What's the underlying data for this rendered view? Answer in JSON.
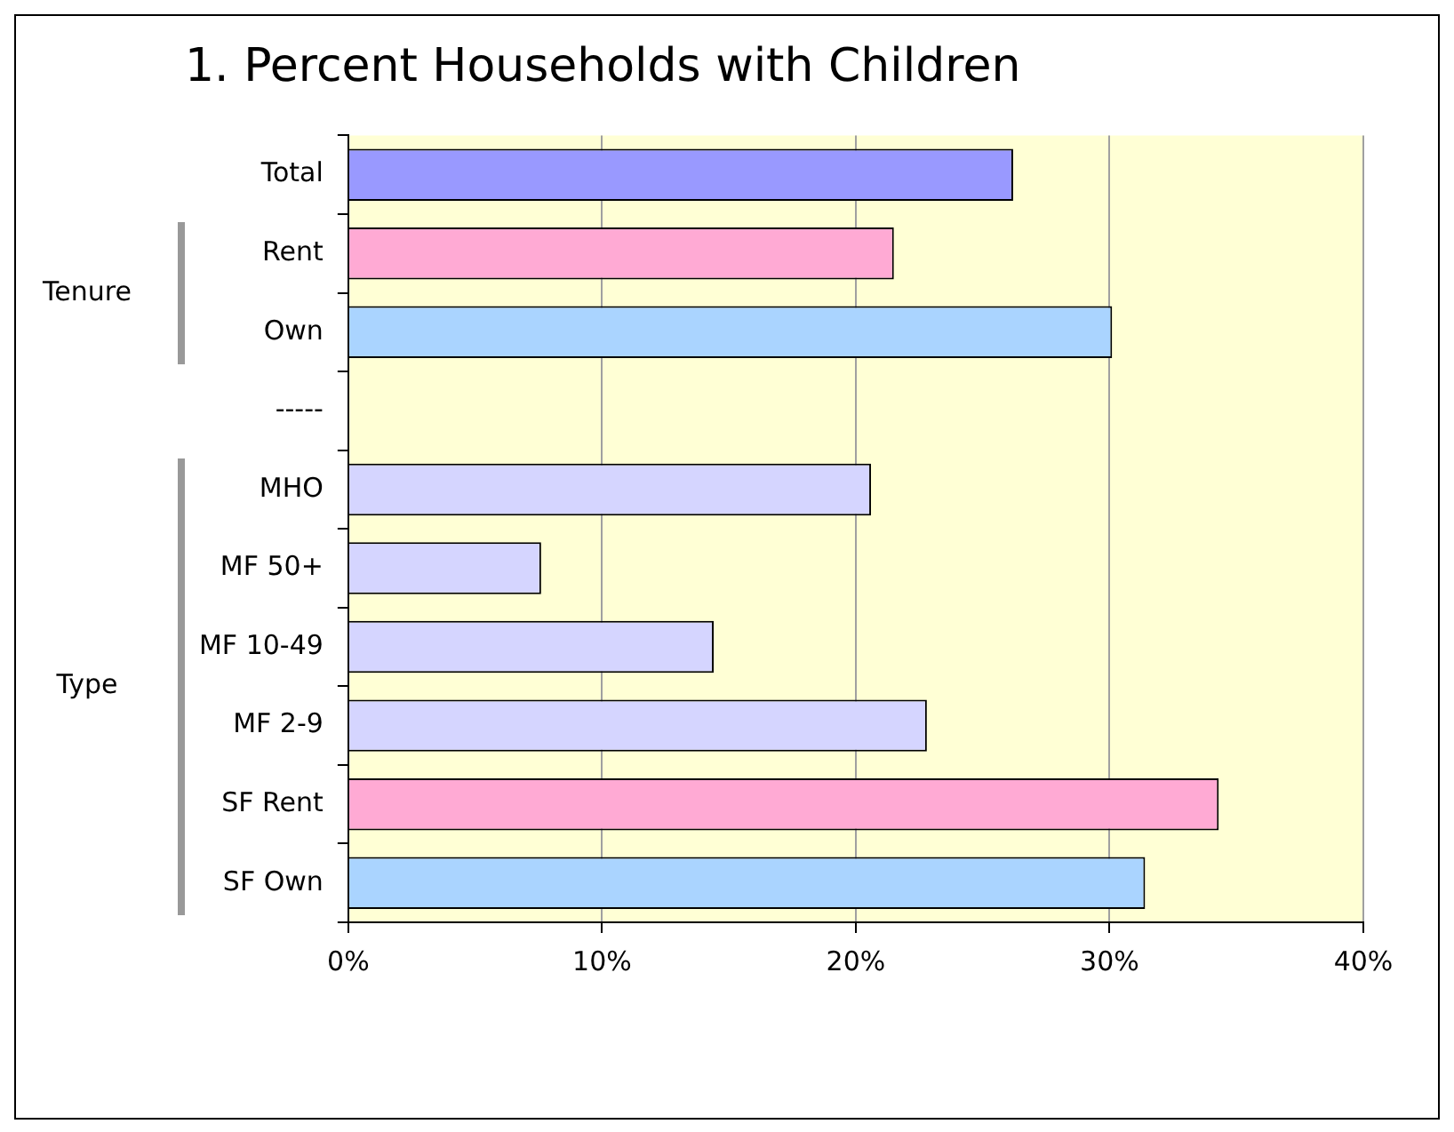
{
  "chart_data": {
    "type": "bar",
    "orientation": "horizontal",
    "title": "1. Percent Households with Children",
    "categories": [
      "Total",
      "Rent",
      "Own",
      "-----",
      "MHO",
      "MF 50+",
      "MF 10-49",
      "MF 2-9",
      "SF Rent",
      "SF Own"
    ],
    "values": [
      26.2,
      21.5,
      30.1,
      null,
      20.6,
      7.6,
      14.4,
      22.8,
      34.3,
      31.4
    ],
    "colors": [
      "#9999ff",
      "#ffaad4",
      "#aad4ff",
      "#d5d5ff",
      "#d5d5ff",
      "#d5d5ff",
      "#d5d5ff",
      "#d5d5ff",
      "#ffaad4",
      "#aad4ff"
    ],
    "xlim": [
      0,
      40
    ],
    "xticks": [
      {
        "value": 0,
        "label": "0%"
      },
      {
        "value": 10,
        "label": "10%"
      },
      {
        "value": 20,
        "label": "20%"
      },
      {
        "value": 30,
        "label": "30%"
      },
      {
        "value": 40,
        "label": "40%"
      }
    ],
    "grid": "x",
    "annotations": [
      "Tenure",
      "Type"
    ]
  }
}
